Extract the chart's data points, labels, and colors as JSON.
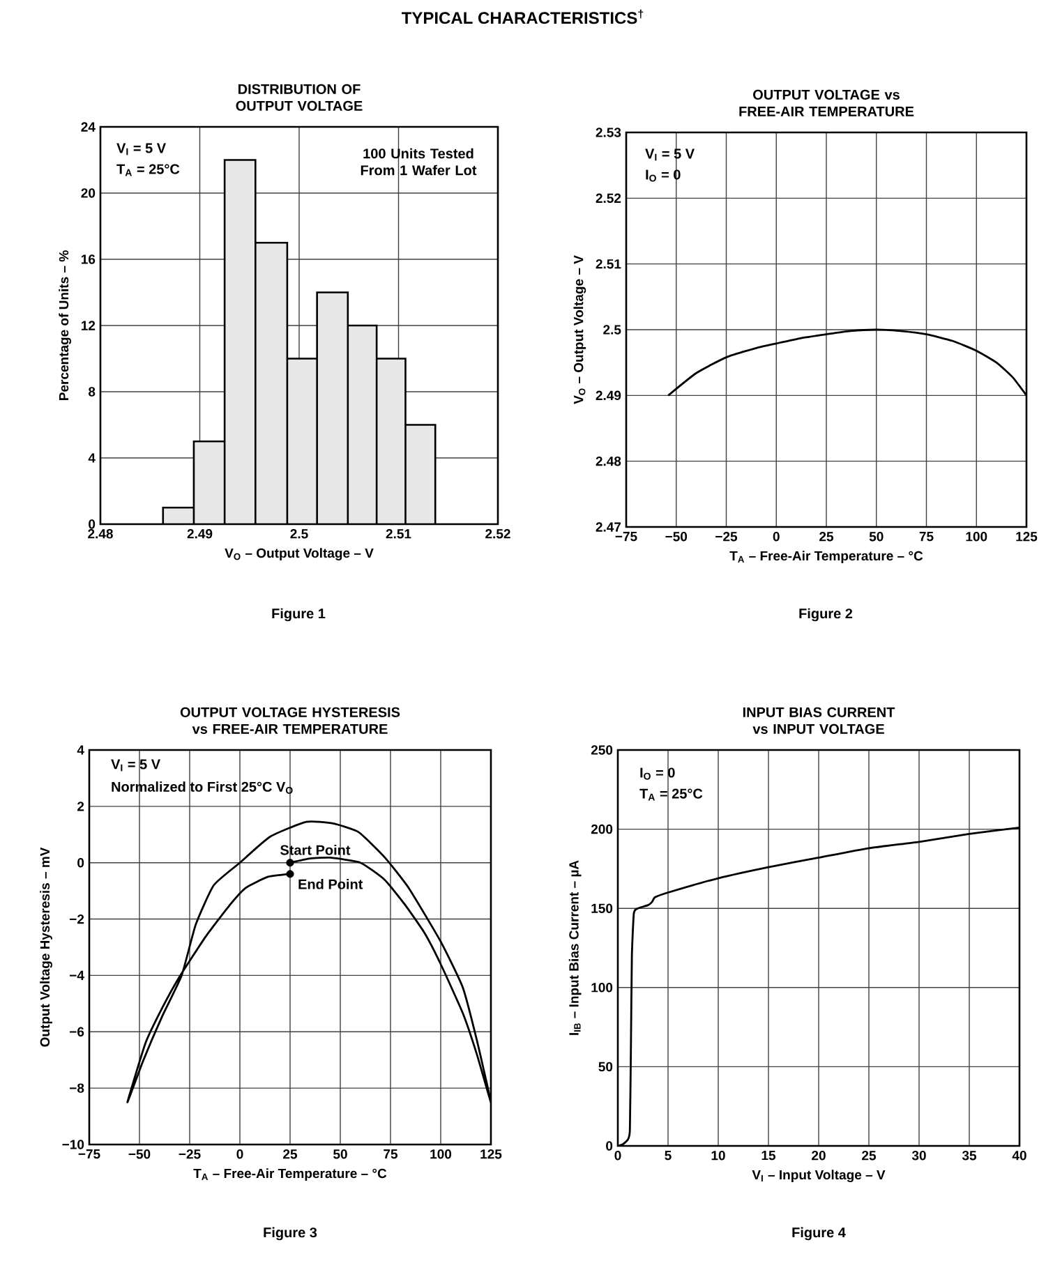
{
  "chart_data": [
    {
      "type": "histogram",
      "title": "DISTRIBUTION OF OUTPUT VOLTAGE",
      "xlabel": "V$_{O}$ – Output Voltage – V",
      "ylabel": "Percentage of Units – %",
      "bins": [
        2.4863,
        2.4894,
        2.4925,
        2.4956,
        2.4988,
        2.5018,
        2.5049,
        2.5078,
        2.5107,
        2.5137
      ],
      "values": [
        1,
        5,
        22,
        17,
        10,
        14,
        12,
        10,
        6
      ],
      "color": "#e8e8e8",
      "xlim": [
        2.48,
        2.52
      ],
      "xticks": [
        2.48,
        2.49,
        2.5,
        2.51,
        2.52
      ],
      "ylim": [
        0,
        24
      ],
      "yticks": [
        0,
        4,
        8,
        12,
        16,
        20,
        24
      ],
      "grid": true,
      "annotations": [
        "TYPICAL CHARACTERISTICS$^{†}$",
        "V$_{I}$ = 5 V",
        "T$_{A}$ = 25°C",
        "100 Units Tested From 1 Wafer Lot",
        "Figure 1"
      ]
    },
    {
      "type": "line",
      "title": "OUTPUT VOLTAGE vs FREE-AIR TEMPERATURE",
      "xlabel": "T$_{A}$ – Free-Air Temperature – °C",
      "ylabel": "V$_{O}$ – Output Voltage – V",
      "x": [
        -54,
        -40,
        -25,
        -10,
        0,
        12,
        25,
        37,
        50,
        62,
        75,
        88,
        100,
        110,
        118,
        125
      ],
      "values": [
        2.49,
        2.4934,
        2.4958,
        2.4972,
        2.4979,
        2.4987,
        2.4993,
        2.4998,
        2.5,
        2.4998,
        2.4993,
        2.4983,
        2.4968,
        2.495,
        2.4928,
        2.49
      ],
      "color": "#000000",
      "xlim": [
        -75,
        125
      ],
      "xticks": [
        {
          "value": -75,
          "label": "−75"
        },
        {
          "value": -50,
          "label": "−50"
        },
        {
          "value": -25,
          "label": "−25"
        },
        0,
        25,
        50,
        75,
        100,
        125
      ],
      "ylim": [
        2.47,
        2.53
      ],
      "yticks": [
        2.47,
        2.48,
        2.49,
        2.5,
        2.51,
        2.52,
        2.53
      ],
      "grid": true,
      "annotations": [
        "V$_{I}$ = 5 V",
        "I$_{O}$ = 0",
        "Figure 2"
      ]
    },
    {
      "type": "line",
      "title": "OUTPUT VOLTAGE HYSTERESIS vs FREE-AIR TEMPERATURE",
      "xlabel": "T$_{A}$ – Free-Air Temperature – °C",
      "ylabel": "Output Voltage Hysteresis – mV",
      "series": [
        {
          "type": "line",
          "color": "#000000",
          "x": [
            25,
            35,
            45,
            60,
            72,
            82,
            92,
            100,
            111,
            118,
            125,
            118,
            111,
            100,
            84,
            72,
            59,
            46,
            33,
            15,
            0,
            -13,
            -22,
            -29,
            -39,
            -48,
            -56,
            -47,
            -39,
            -30.5,
            -17,
            -5,
            3,
            14,
            25
          ],
          "values": [
            0,
            0.15,
            0.18,
            0,
            -0.6,
            -1.47,
            -2.5,
            -3.6,
            -5.34,
            -6.8,
            -8.5,
            -6.3,
            -4.43,
            -2.8,
            -0.89,
            0.2,
            1.09,
            1.4,
            1.45,
            0.92,
            0,
            -0.8,
            -2.2,
            -4.0,
            -5.5,
            -7.0,
            -8.5,
            -6.4,
            -5.2,
            -4.1,
            -2.62,
            -1.5,
            -0.89,
            -0.5,
            -0.4
          ]
        },
        {
          "type": "scatter",
          "marker": "circle",
          "color": "#000000",
          "x": [
            25,
            25
          ],
          "values": [
            0,
            -0.4
          ]
        }
      ],
      "xlim": [
        -75,
        125
      ],
      "xticks": [
        {
          "value": -75,
          "label": "−75"
        },
        {
          "value": -50,
          "label": "−50"
        },
        {
          "value": -25,
          "label": "−25"
        },
        0,
        25,
        50,
        75,
        100,
        125
      ],
      "ylim": [
        -10,
        4
      ],
      "yticks": [
        {
          "value": -10,
          "label": "−10"
        },
        {
          "value": -8,
          "label": "−8"
        },
        {
          "value": -6,
          "label": "−6"
        },
        {
          "value": -4,
          "label": "−4"
        },
        {
          "value": -2,
          "label": "−2"
        },
        0,
        2,
        4
      ],
      "grid": true,
      "annotations": [
        "V$_{I}$ = 5 V",
        "Normalized to First 25°C V$_{O}$",
        {
          "text": "Start Point",
          "x": 25,
          "y": 0
        },
        {
          "text": "End Point",
          "x": 25,
          "y": -0.4
        },
        "Figure 3"
      ]
    },
    {
      "type": "line",
      "title": "INPUT BIAS CURRENT vs INPUT VOLTAGE",
      "xlabel": "V$_{I}$ – Input Voltage – V",
      "ylabel": "I$_{IB}$ – Input Bias Current – µA",
      "x": [
        0,
        0.5,
        1,
        1.2,
        1.3,
        1.4,
        1.6,
        2,
        3,
        3.4,
        3.7,
        5,
        10,
        15,
        20,
        25,
        30,
        35,
        40
      ],
      "values": [
        0,
        1,
        4,
        10,
        60,
        120,
        147,
        150,
        152,
        154,
        157,
        160,
        169,
        176,
        182,
        188,
        192,
        197,
        201
      ],
      "color": "#000000",
      "xlim": [
        0,
        40
      ],
      "xticks": [
        0,
        5,
        10,
        15,
        20,
        25,
        30,
        35,
        40
      ],
      "ylim": [
        0,
        250
      ],
      "yticks": [
        0,
        50,
        100,
        150,
        200,
        250
      ],
      "grid": true,
      "annotations": [
        "I$_{O}$ = 0",
        "T$_{A}$ = 25°C",
        "Figure 4"
      ]
    }
  ]
}
